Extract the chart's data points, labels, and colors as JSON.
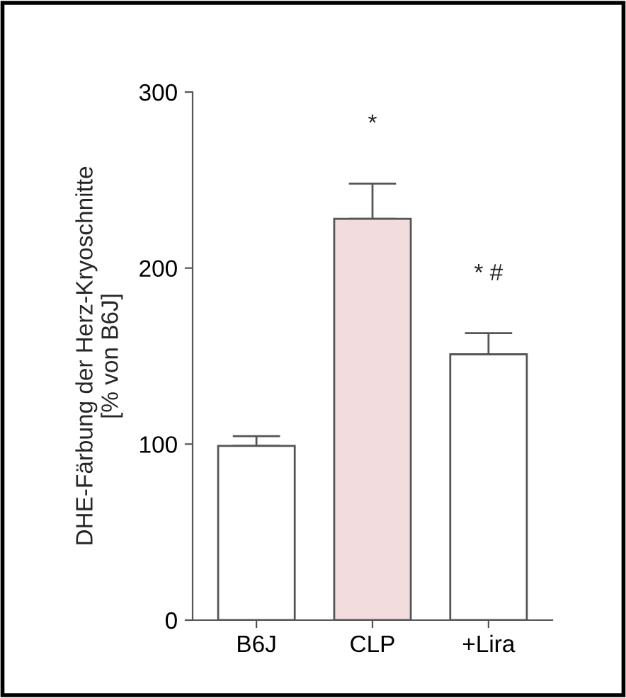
{
  "chart_data": {
    "type": "bar",
    "ylabel": "DHE-Färbung der Herz-Kryoschnitte\n[% von B6J]",
    "categories": [
      "B6J",
      "CLP",
      "+Lira"
    ],
    "values": [
      99,
      228,
      151
    ],
    "errors": [
      5.5,
      20,
      12
    ],
    "colors": [
      "#ffffff",
      "#f2dcdd",
      "#ffffff"
    ],
    "ylim": [
      0,
      300
    ],
    "yticks": [
      0,
      100,
      200,
      300
    ],
    "grid": false,
    "annotations": [
      "*",
      "* #"
    ]
  }
}
